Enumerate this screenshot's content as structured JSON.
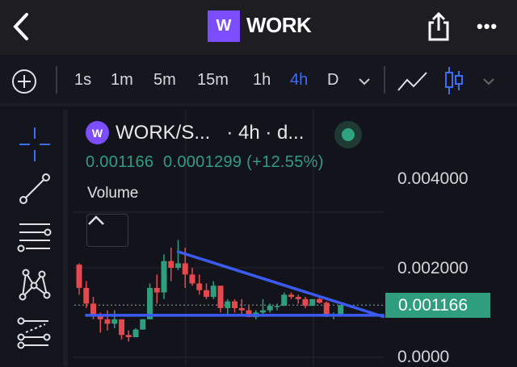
{
  "header": {
    "back_icon": "chevron-left-icon",
    "logo_letter": "W",
    "title": "WORK",
    "share_icon": "share-icon",
    "more_label": "•••"
  },
  "toolbar": {
    "add_icon": "plus-circle-icon",
    "intervals": [
      "1s",
      "1m",
      "5m",
      "15m",
      "1h",
      "4h",
      "D"
    ],
    "active_interval": "4h",
    "chart_types": [
      "line-chart-icon",
      "candlestick-icon"
    ]
  },
  "drawing_tools": [
    "crosshair-icon",
    "trend-line-icon",
    "horizontal-lines-icon",
    "pattern-icon",
    "fib-icon"
  ],
  "legend": {
    "symbol": "WORK/S...",
    "interval": "· 4h · d...",
    "values": "0.001166  0.0001299 (+12.55%)",
    "volume_label": "Volume"
  },
  "price_axis": {
    "labels": [
      "0.004000",
      "0.002000",
      "0.0000"
    ],
    "current_price": "0.001166"
  },
  "colors": {
    "up": "#2e9e7e",
    "down": "#e5484d",
    "trendline": "#3b5bf0",
    "accent": "#3d6df2",
    "brand": "#7b4dff"
  },
  "chart_data": {
    "type": "candlestick",
    "ylim": [
      0,
      0.0045
    ],
    "yticks": [
      0,
      0.002,
      0.004
    ],
    "last_price": 0.001166,
    "candles": [
      [
        0.00207,
        0.0021,
        0.0014,
        0.00155
      ],
      [
        0.00155,
        0.0017,
        0.0011,
        0.0012
      ],
      [
        0.0012,
        0.00135,
        0.00085,
        0.00095
      ],
      [
        0.00095,
        0.001,
        0.00055,
        0.00085
      ],
      [
        0.00085,
        0.00105,
        0.0006,
        0.00075
      ],
      [
        0.00075,
        0.00105,
        0.00065,
        0.00085
      ],
      [
        0.00085,
        0.00085,
        0.0004,
        0.0005
      ],
      [
        0.0005,
        0.0006,
        0.00035,
        0.00045
      ],
      [
        0.00045,
        0.00065,
        0.00045,
        0.00062
      ],
      [
        0.00062,
        0.00085,
        0.00062,
        0.00085
      ],
      [
        0.00085,
        0.00165,
        0.00085,
        0.00155
      ],
      [
        0.00155,
        0.00185,
        0.0012,
        0.00145
      ],
      [
        0.00145,
        0.0023,
        0.0013,
        0.00215
      ],
      [
        0.00215,
        0.00245,
        0.0017,
        0.002
      ],
      [
        0.002,
        0.00262,
        0.00195,
        0.0021
      ],
      [
        0.0021,
        0.00245,
        0.00155,
        0.00185
      ],
      [
        0.00185,
        0.002,
        0.0016,
        0.00165
      ],
      [
        0.00165,
        0.00185,
        0.0014,
        0.0015
      ],
      [
        0.0015,
        0.00165,
        0.0013,
        0.00135
      ],
      [
        0.00135,
        0.0017,
        0.0013,
        0.0016
      ],
      [
        0.0016,
        0.0016,
        0.001,
        0.0011
      ],
      [
        0.0011,
        0.0013,
        0.00095,
        0.00125
      ],
      [
        0.00125,
        0.0013,
        0.001,
        0.0011
      ],
      [
        0.0011,
        0.0013,
        0.00095,
        0.00105
      ],
      [
        0.00105,
        0.00115,
        0.0009,
        0.0009
      ],
      [
        0.0009,
        0.00105,
        0.00085,
        0.001
      ],
      [
        0.001,
        0.0013,
        0.00095,
        0.00105
      ],
      [
        0.00105,
        0.0012,
        0.001,
        0.00115
      ],
      [
        0.00115,
        0.0012,
        0.00105,
        0.00115
      ],
      [
        0.00115,
        0.00145,
        0.00115,
        0.0014
      ],
      [
        0.0014,
        0.00145,
        0.0013,
        0.00135
      ],
      [
        0.00135,
        0.0014,
        0.0012,
        0.0013
      ],
      [
        0.0013,
        0.00135,
        0.0011,
        0.00115
      ],
      [
        0.00115,
        0.0013,
        0.00115,
        0.0013
      ],
      [
        0.0013,
        0.00135,
        0.0012,
        0.00122
      ],
      [
        0.00122,
        0.00125,
        0.0009,
        0.00095
      ],
      [
        0.00095,
        0.001,
        0.00085,
        0.00095
      ],
      [
        0.00095,
        0.00117,
        0.00095,
        0.001166
      ]
    ],
    "drawings": [
      {
        "type": "trendline",
        "from": [
          14,
          0.00236
        ],
        "to": [
          43,
          0.00091
        ]
      },
      {
        "type": "horizontal",
        "from": [
          1,
          0.00094
        ],
        "to": [
          43,
          0.00094
        ]
      }
    ]
  }
}
